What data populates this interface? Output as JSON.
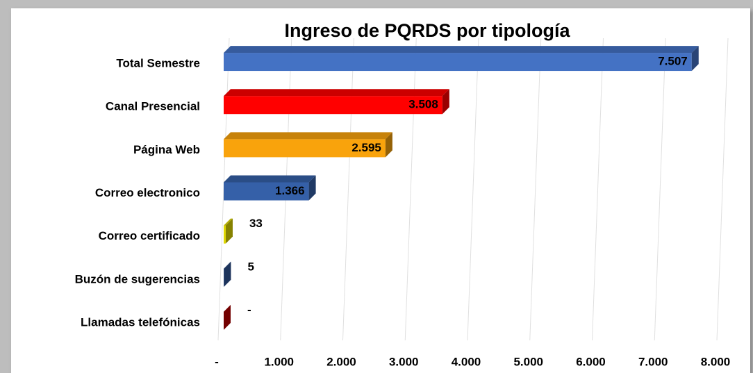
{
  "chart_data": {
    "type": "bar",
    "orientation": "horizontal",
    "title": "Ingreso de PQRDS por tipología",
    "categories": [
      "Total Semestre",
      "Canal Presencial",
      "Página Web",
      "Correo electronico",
      "Correo certificado",
      "Buzón de sugerencias",
      "Llamadas telefónicas"
    ],
    "values": [
      7507,
      3508,
      2595,
      1366,
      33,
      5,
      0
    ],
    "value_labels": [
      "7.507",
      "3.508",
      "2.595",
      "1.366",
      "33",
      "5",
      "-"
    ],
    "colors": [
      "#4472c4",
      "#ff0000",
      "#f9a30c",
      "#3560a8",
      "#e0d800",
      "#2f5597",
      "#c00000"
    ],
    "xlim": [
      0,
      8000
    ],
    "xticks": [
      {
        "value": 0,
        "label": "-"
      },
      {
        "value": 1000,
        "label": "1.000"
      },
      {
        "value": 2000,
        "label": "2.000"
      },
      {
        "value": 3000,
        "label": "3.000"
      },
      {
        "value": 4000,
        "label": "4.000"
      },
      {
        "value": 5000,
        "label": "5.000"
      },
      {
        "value": 6000,
        "label": "6.000"
      },
      {
        "value": 7000,
        "label": "7.000"
      },
      {
        "value": 8000,
        "label": "8.000"
      }
    ],
    "grid": true
  }
}
